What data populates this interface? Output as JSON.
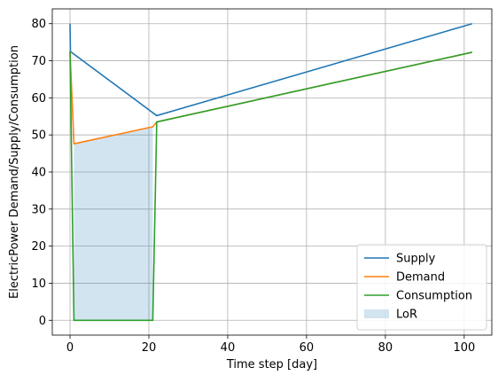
{
  "chart_data": {
    "type": "line",
    "xlabel": "Time step [day]",
    "ylabel": "ElectricPower Demand/Supply/Consumption",
    "xlim": [
      -4.5,
      107
    ],
    "ylim": [
      -4,
      84
    ],
    "xticks": [
      0,
      20,
      40,
      60,
      80,
      100
    ],
    "yticks": [
      0,
      10,
      20,
      30,
      40,
      50,
      60,
      70,
      80
    ],
    "grid": true,
    "legend_position": "lower right",
    "series": [
      {
        "name": "Supply",
        "color": "#1f77b4",
        "x": [
          0,
          0.1,
          22,
          102
        ],
        "y": [
          80,
          72.5,
          55.2,
          80
        ]
      },
      {
        "name": "Demand",
        "color": "#ff7f0e",
        "x": [
          0,
          1,
          21,
          22,
          102
        ],
        "y": [
          72.5,
          47.6,
          52.2,
          53.5,
          72.3
        ]
      },
      {
        "name": "Consumption",
        "color": "#2ca02c",
        "x": [
          0,
          1,
          21,
          22,
          102
        ],
        "y": [
          72.5,
          0,
          0,
          53.5,
          72.3
        ]
      }
    ],
    "area": {
      "name": "LoR",
      "color": "#1f77b4",
      "opacity": 0.2,
      "x": [
        1,
        21
      ],
      "upper": [
        47.6,
        52.2
      ],
      "lower": [
        0,
        0
      ]
    }
  }
}
